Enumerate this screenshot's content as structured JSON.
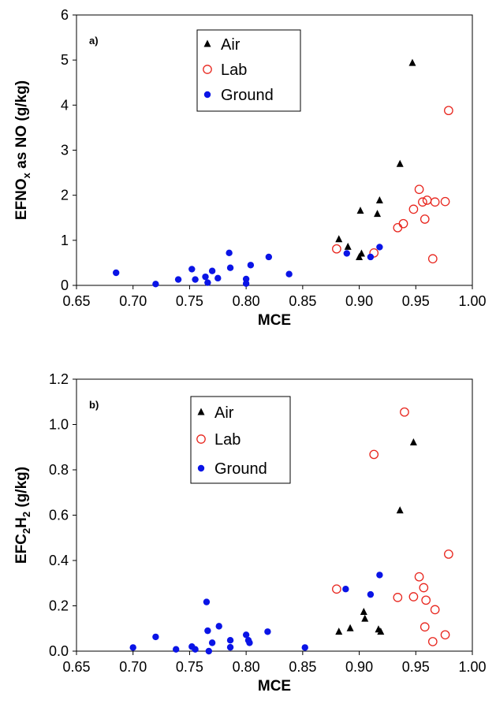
{
  "chart_data": [
    {
      "type": "scatter",
      "panel_label": "a)",
      "xlabel": "MCE",
      "ylabel_parts": [
        "EFNO",
        "x",
        " as NO (g/kg)"
      ],
      "xlim": [
        0.65,
        1.0
      ],
      "ylim": [
        0,
        6
      ],
      "xticks": [
        "0.65",
        "0.70",
        "0.75",
        "0.80",
        "0.85",
        "0.90",
        "0.95",
        "1.00"
      ],
      "yticks": [
        "0",
        "1",
        "2",
        "3",
        "4",
        "5",
        "6"
      ],
      "grid": false,
      "legend": "top-center",
      "series": [
        {
          "name": "Air",
          "marker": "triangle",
          "color": "#000000",
          "points": [
            [
              0.882,
              1.02
            ],
            [
              0.89,
              0.85
            ],
            [
              0.9,
              0.62
            ],
            [
              0.901,
              1.65
            ],
            [
              0.902,
              0.7
            ],
            [
              0.916,
              1.58
            ],
            [
              0.918,
              1.88
            ],
            [
              0.936,
              2.69
            ],
            [
              0.947,
              4.93
            ]
          ]
        },
        {
          "name": "Lab",
          "marker": "open-circle",
          "color": "#e8261e",
          "points": [
            [
              0.88,
              0.81
            ],
            [
              0.913,
              0.72
            ],
            [
              0.934,
              1.28
            ],
            [
              0.939,
              1.37
            ],
            [
              0.948,
              1.69
            ],
            [
              0.953,
              2.13
            ],
            [
              0.956,
              1.85
            ],
            [
              0.958,
              1.47
            ],
            [
              0.96,
              1.89
            ],
            [
              0.965,
              0.59
            ],
            [
              0.967,
              1.85
            ],
            [
              0.976,
              1.86
            ],
            [
              0.979,
              3.88
            ]
          ]
        },
        {
          "name": "Ground",
          "marker": "circle",
          "color": "#0a14e6",
          "points": [
            [
              0.685,
              0.28
            ],
            [
              0.72,
              0.03
            ],
            [
              0.74,
              0.13
            ],
            [
              0.752,
              0.36
            ],
            [
              0.755,
              0.13
            ],
            [
              0.764,
              0.19
            ],
            [
              0.766,
              0.06
            ],
            [
              0.77,
              0.32
            ],
            [
              0.775,
              0.16
            ],
            [
              0.785,
              0.72
            ],
            [
              0.786,
              0.39
            ],
            [
              0.8,
              0.14
            ],
            [
              0.8,
              0.04
            ],
            [
              0.804,
              0.45
            ],
            [
              0.82,
              0.63
            ],
            [
              0.838,
              0.25
            ],
            [
              0.889,
              0.71
            ],
            [
              0.91,
              0.63
            ],
            [
              0.918,
              0.85
            ]
          ]
        }
      ]
    },
    {
      "type": "scatter",
      "panel_label": "b)",
      "xlabel": "MCE",
      "ylabel_parts": [
        "EFC",
        "2",
        "H",
        "2",
        " (g/kg)"
      ],
      "xlim": [
        0.65,
        1.0
      ],
      "ylim": [
        0,
        1.2
      ],
      "xticks": [
        "0.65",
        "0.70",
        "0.75",
        "0.80",
        "0.85",
        "0.90",
        "0.95",
        "1.00"
      ],
      "yticks": [
        "0.0",
        "0.2",
        "0.4",
        "0.6",
        "0.8",
        "1.0",
        "1.2"
      ],
      "grid": false,
      "legend": "top-center",
      "series": [
        {
          "name": "Air",
          "marker": "triangle",
          "color": "#000000",
          "points": [
            [
              0.882,
              0.085
            ],
            [
              0.892,
              0.1
            ],
            [
              0.904,
              0.172
            ],
            [
              0.905,
              0.142
            ],
            [
              0.917,
              0.095
            ],
            [
              0.919,
              0.085
            ],
            [
              0.936,
              0.62
            ],
            [
              0.948,
              0.92
            ]
          ]
        },
        {
          "name": "Lab",
          "marker": "open-circle",
          "color": "#e8261e",
          "points": [
            [
              0.88,
              0.274
            ],
            [
              0.913,
              0.868
            ],
            [
              0.934,
              0.237
            ],
            [
              0.94,
              1.055
            ],
            [
              0.948,
              0.24
            ],
            [
              0.953,
              0.328
            ],
            [
              0.957,
              0.28
            ],
            [
              0.958,
              0.107
            ],
            [
              0.959,
              0.225
            ],
            [
              0.965,
              0.042
            ],
            [
              0.967,
              0.183
            ],
            [
              0.976,
              0.072
            ],
            [
              0.979,
              0.428
            ]
          ]
        },
        {
          "name": "Ground",
          "marker": "circle",
          "color": "#0a14e6",
          "points": [
            [
              0.7,
              0.016
            ],
            [
              0.72,
              0.063
            ],
            [
              0.738,
              0.008
            ],
            [
              0.752,
              0.02
            ],
            [
              0.755,
              0.008
            ],
            [
              0.765,
              0.217
            ],
            [
              0.766,
              0.09
            ],
            [
              0.767,
              0.0
            ],
            [
              0.77,
              0.037
            ],
            [
              0.776,
              0.11
            ],
            [
              0.786,
              0.017
            ],
            [
              0.786,
              0.048
            ],
            [
              0.8,
              0.072
            ],
            [
              0.802,
              0.048
            ],
            [
              0.803,
              0.037
            ],
            [
              0.819,
              0.086
            ],
            [
              0.852,
              0.016
            ],
            [
              0.888,
              0.274
            ],
            [
              0.91,
              0.25
            ],
            [
              0.918,
              0.336
            ]
          ]
        }
      ]
    }
  ]
}
